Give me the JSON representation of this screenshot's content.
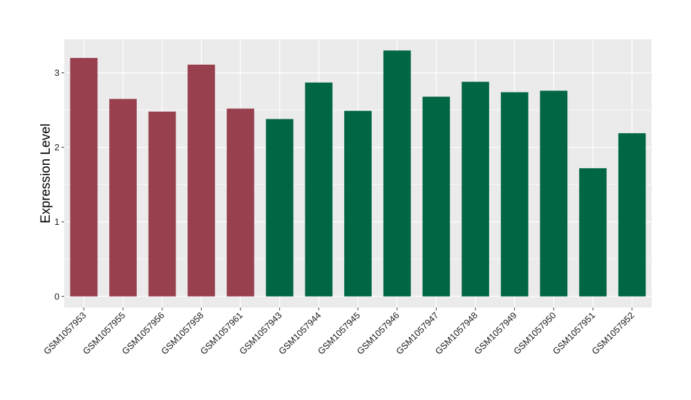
{
  "chart_data": {
    "type": "bar",
    "ylabel": "Expression Level",
    "xlabel": "",
    "ylim": [
      -0.15,
      3.45
    ],
    "yticks": [
      0,
      1,
      2,
      3
    ],
    "grid": true,
    "categories": [
      "GSM1057953",
      "GSM1057955",
      "GSM1057956",
      "GSM1057958",
      "GSM1057961",
      "GSM1057943",
      "GSM1057944",
      "GSM1057945",
      "GSM1057946",
      "GSM1057947",
      "GSM1057948",
      "GSM1057949",
      "GSM1057950",
      "GSM1057951",
      "GSM1057952"
    ],
    "values": [
      3.2,
      2.65,
      2.48,
      3.11,
      2.52,
      2.38,
      2.87,
      2.49,
      3.3,
      2.68,
      2.88,
      2.74,
      2.76,
      1.72,
      2.19
    ],
    "groups": [
      "A",
      "A",
      "A",
      "A",
      "A",
      "B",
      "B",
      "B",
      "B",
      "B",
      "B",
      "B",
      "B",
      "B",
      "B"
    ],
    "group_colors": {
      "A": "#99404f",
      "B": "#006644"
    },
    "panel_color": "#ebebeb",
    "gridline_color": "#ffffff"
  }
}
